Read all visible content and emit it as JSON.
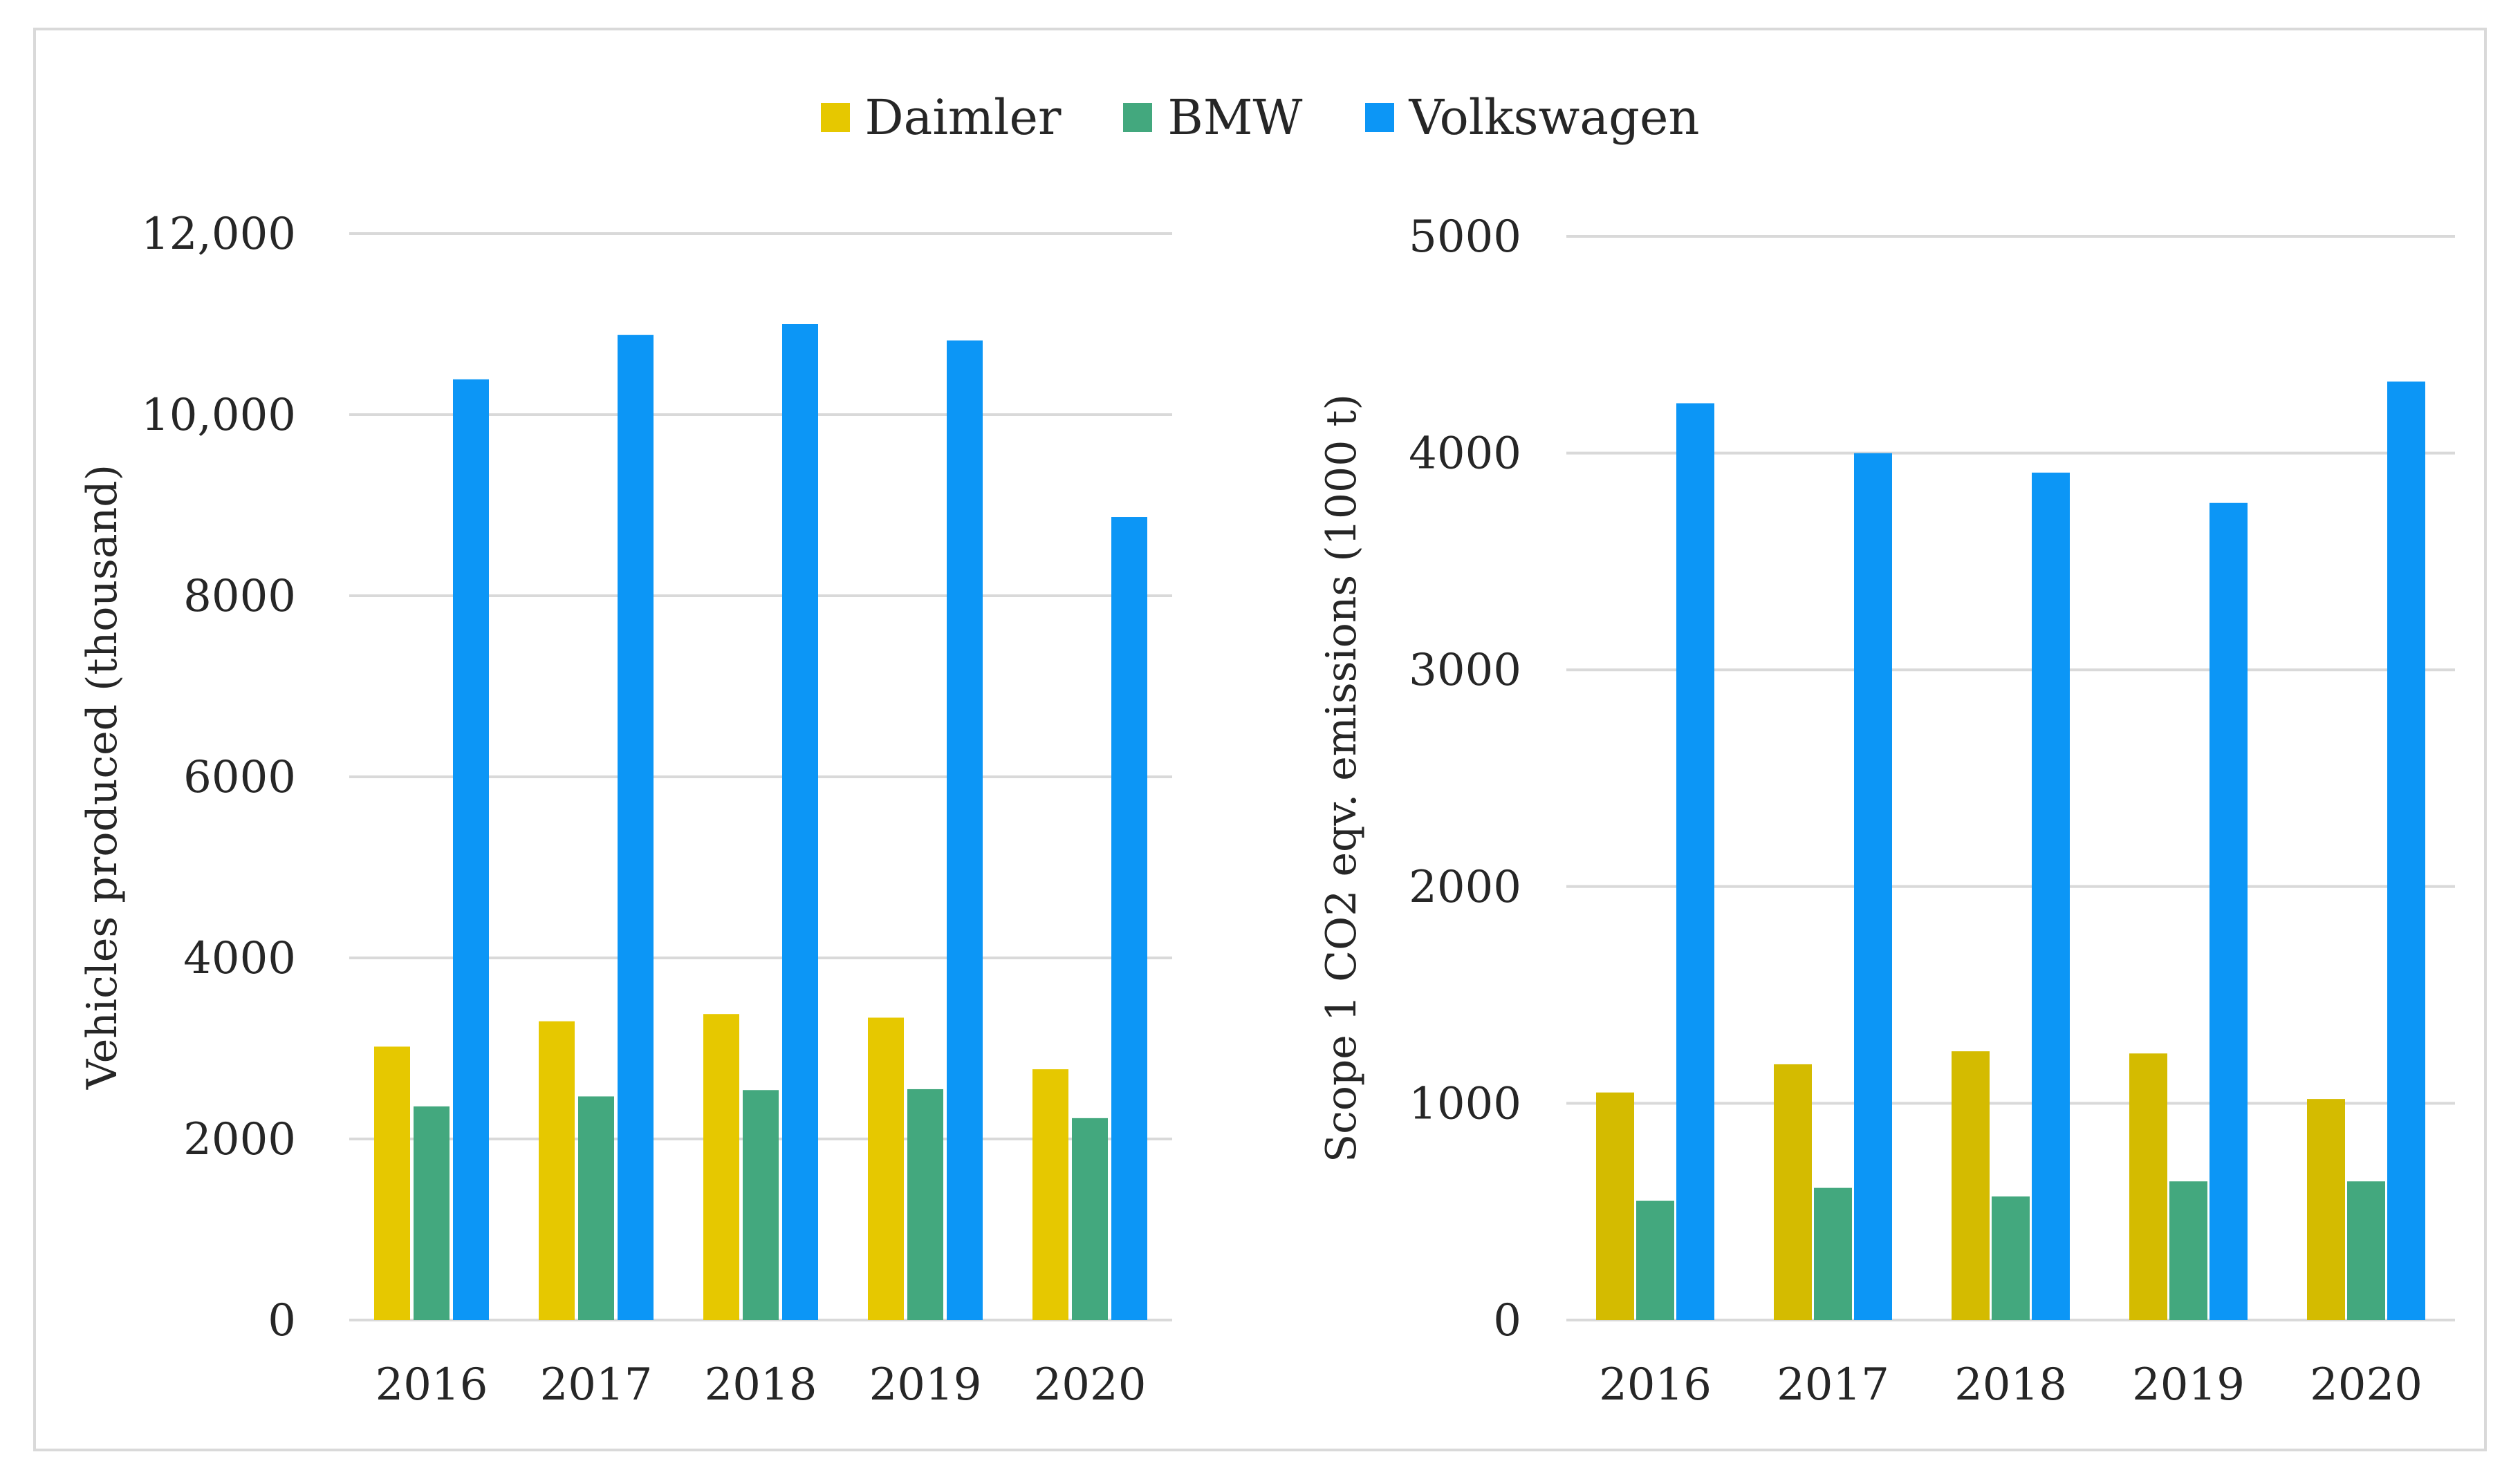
{
  "chart_data": [
    {
      "type": "bar",
      "title": "",
      "xlabel": "",
      "ylabel": "Vehicles produced (thousand)",
      "ylim": [
        0,
        12000
      ],
      "yticks": [
        "0",
        "2000",
        "4000",
        "6000",
        "8000",
        "10,000",
        "12,000"
      ],
      "ytick_values": [
        0,
        2000,
        4000,
        6000,
        8000,
        10000,
        12000
      ],
      "categories": [
        "2016",
        "2017",
        "2018",
        "2019",
        "2020"
      ],
      "grid": true,
      "legend": "top-center",
      "series": [
        {
          "name": "Daimler",
          "color": "#E6C800",
          "values": [
            3020,
            3300,
            3380,
            3340,
            2770
          ]
        },
        {
          "name": "BMW",
          "color": "#43A87E",
          "values": [
            2360,
            2470,
            2540,
            2550,
            2230
          ]
        },
        {
          "name": "Volkswagen",
          "color": "#0C96F6",
          "values": [
            10390,
            10880,
            11000,
            10820,
            8870
          ]
        }
      ]
    },
    {
      "type": "bar",
      "title": "",
      "xlabel": "",
      "ylabel": "Scope 1 CO2 eqv. emissions (1000 t)",
      "ylim": [
        0,
        5000
      ],
      "yticks": [
        "0",
        "1000",
        "2000",
        "3000",
        "4000",
        "5000"
      ],
      "ytick_values": [
        0,
        1000,
        2000,
        3000,
        4000,
        5000
      ],
      "categories": [
        "2016",
        "2017",
        "2018",
        "2019",
        "2020"
      ],
      "grid": true,
      "legend": "top-center",
      "series": [
        {
          "name": "Daimler",
          "color": "#D4BB00",
          "values": [
            1050,
            1180,
            1240,
            1230,
            1020
          ]
        },
        {
          "name": "BMW",
          "color": "#43A87E",
          "values": [
            550,
            610,
            570,
            640,
            640
          ]
        },
        {
          "name": "Volkswagen",
          "color": "#0C96F6",
          "values": [
            4230,
            4000,
            3910,
            3770,
            4330
          ]
        }
      ]
    }
  ],
  "legend": {
    "items": [
      {
        "label": "Daimler",
        "color": "#E6C800"
      },
      {
        "label": "BMW",
        "color": "#43A87E"
      },
      {
        "label": "Volkswagen",
        "color": "#0C96F6"
      }
    ]
  }
}
